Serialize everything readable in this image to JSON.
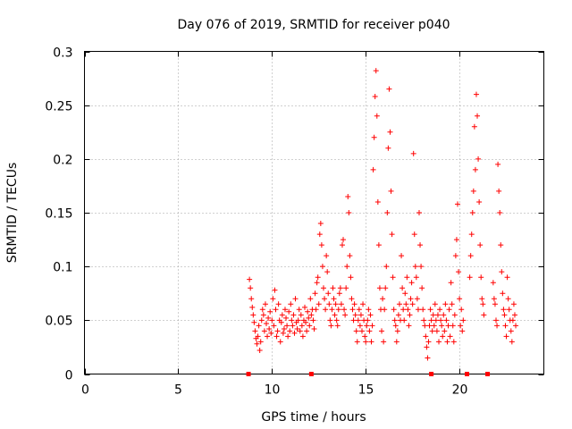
{
  "chart_data": {
    "type": "scatter",
    "title": "Day 076 of 2019, SRMTID for receiver p040",
    "xlabel": "GPS time / hours",
    "ylabel": "SRMTID / TECUs",
    "xlim": [
      0,
      24.5
    ],
    "ylim": [
      0,
      0.3
    ],
    "xticks": [
      0,
      5,
      10,
      15,
      20
    ],
    "xtick_labels": [
      "0",
      "5",
      "10",
      "15",
      "20"
    ],
    "yticks": [
      0,
      0.05,
      0.1,
      0.15,
      0.2,
      0.25,
      0.3
    ],
    "ytick_labels": [
      "0",
      "0.05",
      "0.1",
      "0.15",
      "0.2",
      "0.25",
      "0.3"
    ],
    "grid": true,
    "marker": "plus",
    "color": "#ff0000",
    "series": [
      {
        "name": "SRMTID",
        "points": [
          [
            8.8,
            0.088
          ],
          [
            8.85,
            0.08
          ],
          [
            8.9,
            0.07
          ],
          [
            8.95,
            0.062
          ],
          [
            9.0,
            0.055
          ],
          [
            9.05,
            0.048
          ],
          [
            9.1,
            0.04
          ],
          [
            9.15,
            0.033
          ],
          [
            9.2,
            0.028
          ],
          [
            9.25,
            0.035
          ],
          [
            9.3,
            0.045
          ],
          [
            9.35,
            0.022
          ],
          [
            9.4,
            0.03
          ],
          [
            9.45,
            0.05
          ],
          [
            9.5,
            0.06
          ],
          [
            9.55,
            0.055
          ],
          [
            9.6,
            0.04
          ],
          [
            9.65,
            0.065
          ],
          [
            9.7,
            0.047
          ],
          [
            9.75,
            0.035
          ],
          [
            9.8,
            0.052
          ],
          [
            9.85,
            0.042
          ],
          [
            9.9,
            0.058
          ],
          [
            9.95,
            0.038
          ],
          [
            10.0,
            0.05
          ],
          [
            10.05,
            0.07
          ],
          [
            10.1,
            0.045
          ],
          [
            10.15,
            0.078
          ],
          [
            10.2,
            0.06
          ],
          [
            10.25,
            0.035
          ],
          [
            10.3,
            0.04
          ],
          [
            10.35,
            0.065
          ],
          [
            10.4,
            0.05
          ],
          [
            10.45,
            0.03
          ],
          [
            10.5,
            0.048
          ],
          [
            10.55,
            0.055
          ],
          [
            10.6,
            0.038
          ],
          [
            10.65,
            0.042
          ],
          [
            10.7,
            0.06
          ],
          [
            10.75,
            0.052
          ],
          [
            10.8,
            0.045
          ],
          [
            10.85,
            0.035
          ],
          [
            10.9,
            0.058
          ],
          [
            10.95,
            0.04
          ],
          [
            11.0,
            0.065
          ],
          [
            11.05,
            0.05
          ],
          [
            11.1,
            0.045
          ],
          [
            11.15,
            0.055
          ],
          [
            11.2,
            0.038
          ],
          [
            11.25,
            0.07
          ],
          [
            11.3,
            0.048
          ],
          [
            11.35,
            0.042
          ],
          [
            11.4,
            0.05
          ],
          [
            11.45,
            0.06
          ],
          [
            11.5,
            0.04
          ],
          [
            11.55,
            0.055
          ],
          [
            11.6,
            0.045
          ],
          [
            11.65,
            0.035
          ],
          [
            11.7,
            0.05
          ],
          [
            11.75,
            0.062
          ],
          [
            11.8,
            0.048
          ],
          [
            11.85,
            0.04
          ],
          [
            11.9,
            0.058
          ],
          [
            11.95,
            0.052
          ],
          [
            12.0,
            0.045
          ],
          [
            12.05,
            0.07
          ],
          [
            12.1,
            0.055
          ],
          [
            12.15,
            0.06
          ],
          [
            12.2,
            0.05
          ],
          [
            12.25,
            0.042
          ],
          [
            12.3,
            0.075
          ],
          [
            12.35,
            0.06
          ],
          [
            12.4,
            0.085
          ],
          [
            12.45,
            0.09
          ],
          [
            12.5,
            0.065
          ],
          [
            12.55,
            0.13
          ],
          [
            12.6,
            0.14
          ],
          [
            12.65,
            0.12
          ],
          [
            12.7,
            0.1
          ],
          [
            12.75,
            0.08
          ],
          [
            12.8,
            0.07
          ],
          [
            12.85,
            0.06
          ],
          [
            12.9,
            0.11
          ],
          [
            12.95,
            0.095
          ],
          [
            13.0,
            0.075
          ],
          [
            13.05,
            0.065
          ],
          [
            13.1,
            0.05
          ],
          [
            13.15,
            0.045
          ],
          [
            13.2,
            0.06
          ],
          [
            13.25,
            0.08
          ],
          [
            13.3,
            0.07
          ],
          [
            13.35,
            0.055
          ],
          [
            13.4,
            0.065
          ],
          [
            13.45,
            0.05
          ],
          [
            13.5,
            0.045
          ],
          [
            13.55,
            0.06
          ],
          [
            13.6,
            0.075
          ],
          [
            13.65,
            0.08
          ],
          [
            13.7,
            0.065
          ],
          [
            13.75,
            0.12
          ],
          [
            13.8,
            0.125
          ],
          [
            13.85,
            0.06
          ],
          [
            13.9,
            0.055
          ],
          [
            13.95,
            0.08
          ],
          [
            14.0,
            0.1
          ],
          [
            14.05,
            0.165
          ],
          [
            14.1,
            0.15
          ],
          [
            14.15,
            0.11
          ],
          [
            14.2,
            0.09
          ],
          [
            14.25,
            0.07
          ],
          [
            14.3,
            0.06
          ],
          [
            14.35,
            0.05
          ],
          [
            14.4,
            0.065
          ],
          [
            14.45,
            0.055
          ],
          [
            14.5,
            0.04
          ],
          [
            14.55,
            0.03
          ],
          [
            14.6,
            0.05
          ],
          [
            14.65,
            0.06
          ],
          [
            14.7,
            0.045
          ],
          [
            14.75,
            0.055
          ],
          [
            14.8,
            0.04
          ],
          [
            14.85,
            0.065
          ],
          [
            14.9,
            0.05
          ],
          [
            14.95,
            0.035
          ],
          [
            15.0,
            0.03
          ],
          [
            15.05,
            0.045
          ],
          [
            15.1,
            0.05
          ],
          [
            15.15,
            0.06
          ],
          [
            15.2,
            0.04
          ],
          [
            15.25,
            0.055
          ],
          [
            15.3,
            0.03
          ],
          [
            15.35,
            0.045
          ],
          [
            15.4,
            0.19
          ],
          [
            15.45,
            0.22
          ],
          [
            15.5,
            0.258
          ],
          [
            15.55,
            0.282
          ],
          [
            15.6,
            0.24
          ],
          [
            15.65,
            0.16
          ],
          [
            15.7,
            0.12
          ],
          [
            15.75,
            0.08
          ],
          [
            15.8,
            0.06
          ],
          [
            15.85,
            0.04
          ],
          [
            15.9,
            0.07
          ],
          [
            15.95,
            0.03
          ],
          [
            16.0,
            0.06
          ],
          [
            16.05,
            0.08
          ],
          [
            16.1,
            0.1
          ],
          [
            16.15,
            0.15
          ],
          [
            16.2,
            0.21
          ],
          [
            16.25,
            0.265
          ],
          [
            16.3,
            0.225
          ],
          [
            16.35,
            0.17
          ],
          [
            16.4,
            0.13
          ],
          [
            16.45,
            0.09
          ],
          [
            16.5,
            0.06
          ],
          [
            16.55,
            0.05
          ],
          [
            16.6,
            0.045
          ],
          [
            16.65,
            0.03
          ],
          [
            16.7,
            0.04
          ],
          [
            16.75,
            0.055
          ],
          [
            16.8,
            0.065
          ],
          [
            16.85,
            0.05
          ],
          [
            16.9,
            0.11
          ],
          [
            16.95,
            0.08
          ],
          [
            17.0,
            0.06
          ],
          [
            17.05,
            0.05
          ],
          [
            17.1,
            0.075
          ],
          [
            17.15,
            0.065
          ],
          [
            17.2,
            0.09
          ],
          [
            17.25,
            0.06
          ],
          [
            17.3,
            0.045
          ],
          [
            17.35,
            0.055
          ],
          [
            17.4,
            0.07
          ],
          [
            17.45,
            0.085
          ],
          [
            17.5,
            0.065
          ],
          [
            17.55,
            0.205
          ],
          [
            17.6,
            0.13
          ],
          [
            17.65,
            0.1
          ],
          [
            17.7,
            0.09
          ],
          [
            17.75,
            0.07
          ],
          [
            17.8,
            0.06
          ],
          [
            17.85,
            0.15
          ],
          [
            17.9,
            0.12
          ],
          [
            17.95,
            0.1
          ],
          [
            18.0,
            0.08
          ],
          [
            18.05,
            0.06
          ],
          [
            18.1,
            0.05
          ],
          [
            18.15,
            0.045
          ],
          [
            18.2,
            0.035
          ],
          [
            18.25,
            0.025
          ],
          [
            18.3,
            0.015
          ],
          [
            18.35,
            0.03
          ],
          [
            18.4,
            0.045
          ],
          [
            18.45,
            0.06
          ],
          [
            18.5,
            0.05
          ],
          [
            18.55,
            0.04
          ],
          [
            18.6,
            0.055
          ],
          [
            18.65,
            0.045
          ],
          [
            18.7,
            0.065
          ],
          [
            18.75,
            0.05
          ],
          [
            18.8,
            0.04
          ],
          [
            18.85,
            0.055
          ],
          [
            18.9,
            0.03
          ],
          [
            18.95,
            0.06
          ],
          [
            19.0,
            0.05
          ],
          [
            19.05,
            0.045
          ],
          [
            19.1,
            0.035
          ],
          [
            19.15,
            0.055
          ],
          [
            19.2,
            0.04
          ],
          [
            19.25,
            0.065
          ],
          [
            19.3,
            0.05
          ],
          [
            19.35,
            0.03
          ],
          [
            19.4,
            0.045
          ],
          [
            19.45,
            0.06
          ],
          [
            19.5,
            0.035
          ],
          [
            19.55,
            0.085
          ],
          [
            19.6,
            0.065
          ],
          [
            19.65,
            0.045
          ],
          [
            19.7,
            0.03
          ],
          [
            19.75,
            0.055
          ],
          [
            19.8,
            0.11
          ],
          [
            19.85,
            0.125
          ],
          [
            19.9,
            0.158
          ],
          [
            19.95,
            0.095
          ],
          [
            20.0,
            0.07
          ],
          [
            20.05,
            0.045
          ],
          [
            20.1,
            0.06
          ],
          [
            20.15,
            0.04
          ],
          [
            20.2,
            0.05
          ],
          [
            20.55,
            0.09
          ],
          [
            20.6,
            0.11
          ],
          [
            20.65,
            0.13
          ],
          [
            20.7,
            0.15
          ],
          [
            20.75,
            0.17
          ],
          [
            20.8,
            0.23
          ],
          [
            20.85,
            0.19
          ],
          [
            20.9,
            0.26
          ],
          [
            20.95,
            0.24
          ],
          [
            21.0,
            0.2
          ],
          [
            21.05,
            0.16
          ],
          [
            21.1,
            0.12
          ],
          [
            21.15,
            0.09
          ],
          [
            21.2,
            0.07
          ],
          [
            21.25,
            0.065
          ],
          [
            21.3,
            0.055
          ],
          [
            21.8,
            0.085
          ],
          [
            21.85,
            0.07
          ],
          [
            21.9,
            0.065
          ],
          [
            21.95,
            0.05
          ],
          [
            22.0,
            0.045
          ],
          [
            22.05,
            0.195
          ],
          [
            22.1,
            0.17
          ],
          [
            22.15,
            0.15
          ],
          [
            22.2,
            0.12
          ],
          [
            22.25,
            0.095
          ],
          [
            22.3,
            0.075
          ],
          [
            22.35,
            0.06
          ],
          [
            22.4,
            0.055
          ],
          [
            22.45,
            0.045
          ],
          [
            22.5,
            0.035
          ],
          [
            22.55,
            0.09
          ],
          [
            22.6,
            0.07
          ],
          [
            22.65,
            0.06
          ],
          [
            22.7,
            0.05
          ],
          [
            22.75,
            0.04
          ],
          [
            22.8,
            0.03
          ],
          [
            22.85,
            0.05
          ],
          [
            22.9,
            0.065
          ],
          [
            22.95,
            0.055
          ],
          [
            23.0,
            0.045
          ]
        ]
      }
    ],
    "gap_markers": [
      8.75,
      12.1,
      18.5,
      20.4,
      21.5
    ],
    "gap_value": 0
  }
}
